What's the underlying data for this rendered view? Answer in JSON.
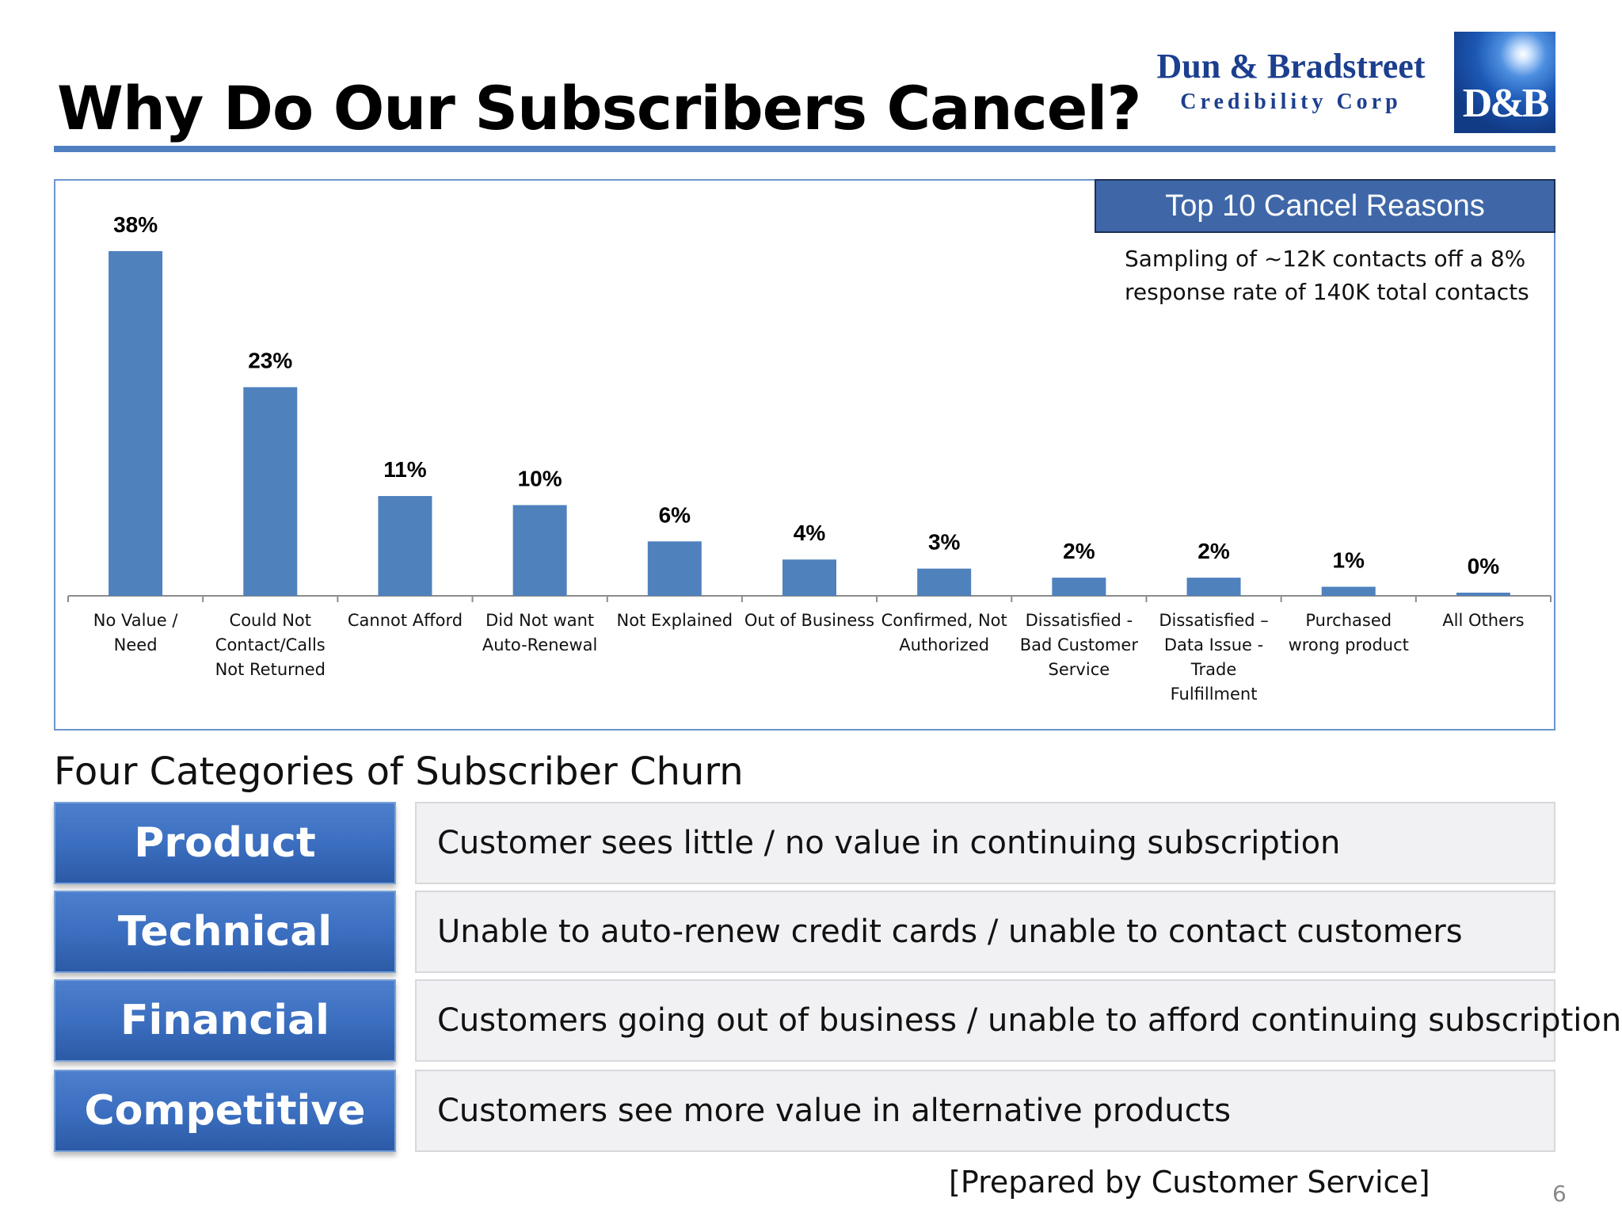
{
  "slide": {
    "title": "Why Do Our Subscribers Cancel?",
    "page_number": "6",
    "footer": "[Prepared by Customer Service]"
  },
  "logo": {
    "line1": "Dun & Bradstreet",
    "line2": "Credibility Corp",
    "mark": "D&B"
  },
  "legend": {
    "heading": "Top 10 Cancel Reasons",
    "note": "Sampling of ~12K contacts off a 8% response rate of 140K total contacts"
  },
  "colors": {
    "bar": "#4f81bd",
    "rule": "#4f7fc0",
    "axis": "#8c8c8c"
  },
  "chart_data": {
    "type": "bar",
    "title": "Top 10 Cancel Reasons",
    "xlabel": "",
    "ylabel": "",
    "ylim": [
      0,
      40
    ],
    "grid": false,
    "categories": [
      [
        "No Value /",
        "Need"
      ],
      [
        "Could Not",
        "Contact/Calls",
        "Not Returned"
      ],
      [
        "Cannot Afford"
      ],
      [
        "Did Not want",
        "Auto-Renewal"
      ],
      [
        "Not Explained"
      ],
      [
        "Out of Business"
      ],
      [
        "Confirmed, Not",
        "Authorized"
      ],
      [
        "Dissatisfied -",
        "Bad Customer",
        "Service"
      ],
      [
        "Dissatisfied –",
        "Data Issue -",
        "Trade",
        "Fulfillment"
      ],
      [
        "Purchased",
        "wrong product"
      ],
      [
        "All Others"
      ]
    ],
    "values": [
      38,
      23,
      11,
      10,
      6,
      4,
      3,
      2,
      2,
      1,
      0
    ],
    "labels": [
      "38%",
      "23%",
      "11%",
      "10%",
      "6%",
      "4%",
      "3%",
      "2%",
      "2%",
      "1%",
      "0%"
    ]
  },
  "churn": {
    "heading": "Four Categories of Subscriber Churn",
    "categories": [
      {
        "name": "Product",
        "description": "Customer sees little / no value in continuing subscription"
      },
      {
        "name": "Technical",
        "description": "Unable to auto-renew credit cards / unable to contact customers"
      },
      {
        "name": "Financial",
        "description": "Customers going out of business / unable to afford continuing subscription"
      },
      {
        "name": "Competitive",
        "description": "Customers see more value in alternative products"
      }
    ]
  }
}
